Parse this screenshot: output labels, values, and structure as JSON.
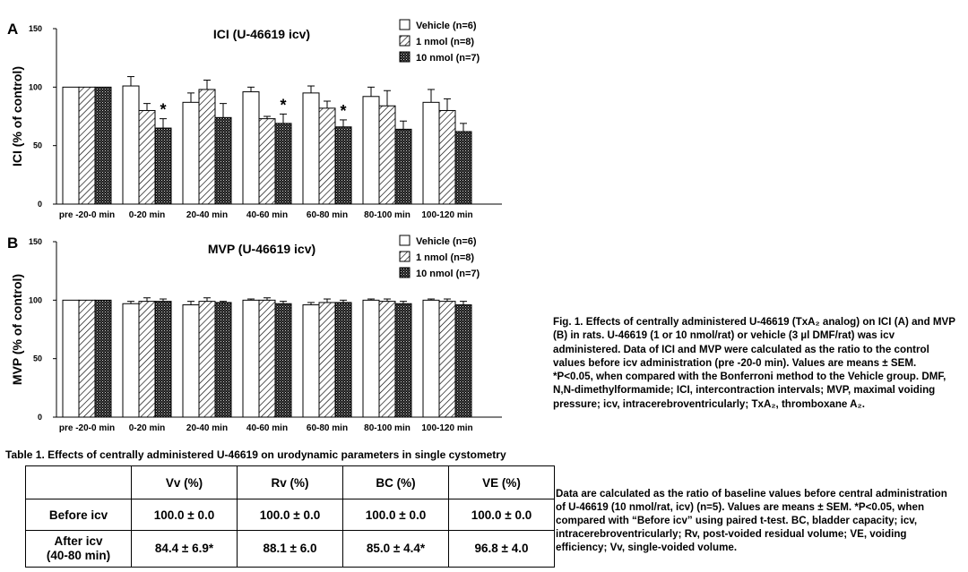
{
  "chart_data": [
    {
      "type": "bar",
      "panel": "A",
      "title": "ICI (U-46619 icv)",
      "ylabel": "ICI (% of control)",
      "ylim": [
        0,
        150
      ],
      "yticks": [
        0,
        50,
        100,
        150
      ],
      "legend_position": "top-right",
      "categories": [
        "pre -20-0 min",
        "0-20 min",
        "20-40 min",
        "40-60 min",
        "60-80 min",
        "80-100 min",
        "100-120 min"
      ],
      "series": [
        {
          "name": "Vehicle (n=6)",
          "fill": "white",
          "values": [
            100,
            101,
            87,
            96,
            95,
            92,
            87
          ],
          "sem": [
            0,
            8,
            8,
            4,
            6,
            8,
            11
          ]
        },
        {
          "name": "1 nmol (n=8)",
          "fill": "hatch",
          "values": [
            100,
            80,
            98,
            73,
            82,
            84,
            80
          ],
          "sem": [
            0,
            6,
            8,
            2,
            6,
            13,
            10
          ]
        },
        {
          "name": "10 nmol (n=7)",
          "fill": "dots",
          "values": [
            100,
            65,
            74,
            69,
            66,
            64,
            62
          ],
          "sem": [
            0,
            8,
            12,
            8,
            6,
            7,
            7
          ]
        }
      ],
      "significance": [
        {
          "category": "0-20 min",
          "series": "10 nmol (n=7)",
          "label": "*"
        },
        {
          "category": "40-60 min",
          "series": "10 nmol (n=7)",
          "label": "*"
        },
        {
          "category": "60-80 min",
          "series": "10 nmol (n=7)",
          "label": "*"
        }
      ]
    },
    {
      "type": "bar",
      "panel": "B",
      "title": "MVP (U-46619 icv)",
      "ylabel": "MVP (% of control)",
      "ylim": [
        0,
        150
      ],
      "yticks": [
        0,
        50,
        100,
        150
      ],
      "legend_position": "top-right",
      "categories": [
        "pre -20-0 min",
        "0-20 min",
        "20-40 min",
        "40-60 min",
        "60-80 min",
        "80-100 min",
        "100-120 min"
      ],
      "series": [
        {
          "name": "Vehicle (n=6)",
          "fill": "white",
          "values": [
            100,
            97,
            96,
            100,
            96,
            100,
            100
          ],
          "sem": [
            0,
            2,
            3,
            1,
            2,
            1,
            1
          ]
        },
        {
          "name": "1 nmol (n=8)",
          "fill": "hatch",
          "values": [
            100,
            99,
            99,
            100,
            98,
            99,
            99
          ],
          "sem": [
            0,
            3,
            3,
            2,
            3,
            2,
            2
          ]
        },
        {
          "name": "10 nmol (n=7)",
          "fill": "dots",
          "values": [
            100,
            99,
            98,
            97,
            98,
            97,
            96
          ],
          "sem": [
            0,
            2,
            1,
            2,
            2,
            2,
            3
          ]
        }
      ]
    }
  ],
  "figure_caption": {
    "line1": "Fig. 1. Effects of centrally administered U-46619 (TxA₂ analog) on ICI (A) and MVP (B) in rats. U-46619 (1 or 10 nmol/rat) or vehicle (3 µl DMF/rat) was icv administered. Data of ICI and MVP were calculated as the ratio to the control values before icv administration (pre -20-0 min). Values are means ± SEM. *P<0.05, when compared with the Bonferroni method to the Vehicle group. DMF, N,N-dimethylformamide; ICI, intercontraction intervals; MVP, maximal voiding pressure; icv, intracerebroventricularly; TxA₂, thromboxane A₂."
  },
  "table": {
    "title": "Table 1. Effects of centrally administered U-46619 on urodynamic parameters in single cystometry",
    "columns": [
      "",
      "Vv (%)",
      "Rv (%)",
      "BC (%)",
      "VE (%)"
    ],
    "rows": [
      {
        "label": "Before icv",
        "cells": [
          "100.0 ± 0.0",
          "100.0 ± 0.0",
          "100.0 ± 0.0",
          "100.0 ± 0.0"
        ]
      },
      {
        "label_line1": "After icv",
        "label_line2": "(40-80 min)",
        "cells": [
          "84.4 ± 6.9*",
          "88.1 ± 6.0",
          "85.0 ± 4.4*",
          "96.8 ± 4.0"
        ]
      }
    ],
    "note": "Data are calculated as the ratio of baseline values before central administration of U-46619 (10 nmol/rat, icv) (n=5). Values are means ± SEM. *P<0.05, when compared with “Before icv” using paired t-test. BC, bladder capacity; icv, intracerebroventricularly; Rv, post-voided residual volume; VE, voiding efficiency; Vv, single-voided volume."
  },
  "colors": {
    "bar_stroke": "#000000",
    "background": "#ffffff"
  }
}
